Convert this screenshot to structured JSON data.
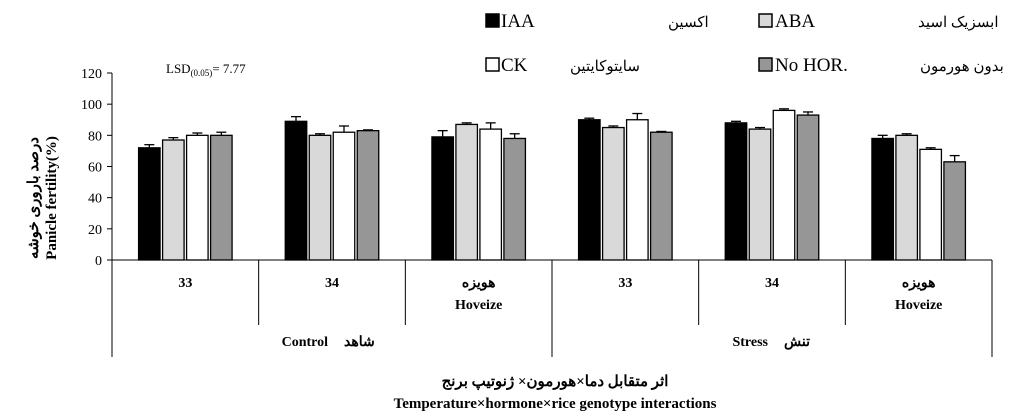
{
  "chart_data": {
    "type": "bar",
    "ylim": [
      0,
      120
    ],
    "yticks": [
      0,
      20,
      40,
      60,
      80,
      100,
      120
    ],
    "ylabel_fa": "درصد باروری خوشه",
    "ylabel": "Panicle fertility(%)",
    "xlabel_fa": "اثر متقابل دما×هورمون× ژنوتیپ برنج",
    "xlabel": "Temperature×hormone×rice genotype interactions",
    "lsd_text": "LSD(0.05)= 7.77",
    "groups": [
      {
        "name_en": "Control",
        "name_fa": "شاهد",
        "categories": [
          {
            "top": "33",
            "bottom": ""
          },
          {
            "top": "34",
            "bottom": ""
          },
          {
            "top": "هویزه",
            "bottom": "Hoveize"
          }
        ]
      },
      {
        "name_en": "Stress",
        "name_fa": "تنش",
        "categories": [
          {
            "top": "33",
            "bottom": ""
          },
          {
            "top": "34",
            "bottom": ""
          },
          {
            "top": "هویزه",
            "bottom": "Hoveize"
          }
        ]
      }
    ],
    "series": [
      {
        "name": "IAA",
        "name_fa": "اکسین",
        "color": "#000000",
        "values": [
          72,
          89,
          79,
          90,
          88,
          78
        ],
        "errors": [
          2,
          3,
          4,
          1,
          1,
          2
        ]
      },
      {
        "name": "ABA",
        "name_fa": "ابسزیک اسید",
        "color": "#d9d9d9",
        "values": [
          77,
          80,
          87,
          85,
          84,
          80
        ],
        "errors": [
          1.5,
          1,
          1,
          1,
          1,
          1
        ]
      },
      {
        "name": "CK",
        "name_fa": "سایتوکایتین",
        "color": "#ffffff",
        "values": [
          80,
          82,
          84,
          90,
          96,
          71
        ],
        "errors": [
          1.5,
          4,
          4,
          4,
          1,
          1
        ]
      },
      {
        "name": "No HOR.",
        "name_fa": "بدون هورمون",
        "color": "#969696",
        "values": [
          80,
          83,
          78,
          82,
          93,
          63
        ],
        "errors": [
          2,
          0.5,
          3,
          0.5,
          2,
          4
        ]
      }
    ]
  }
}
